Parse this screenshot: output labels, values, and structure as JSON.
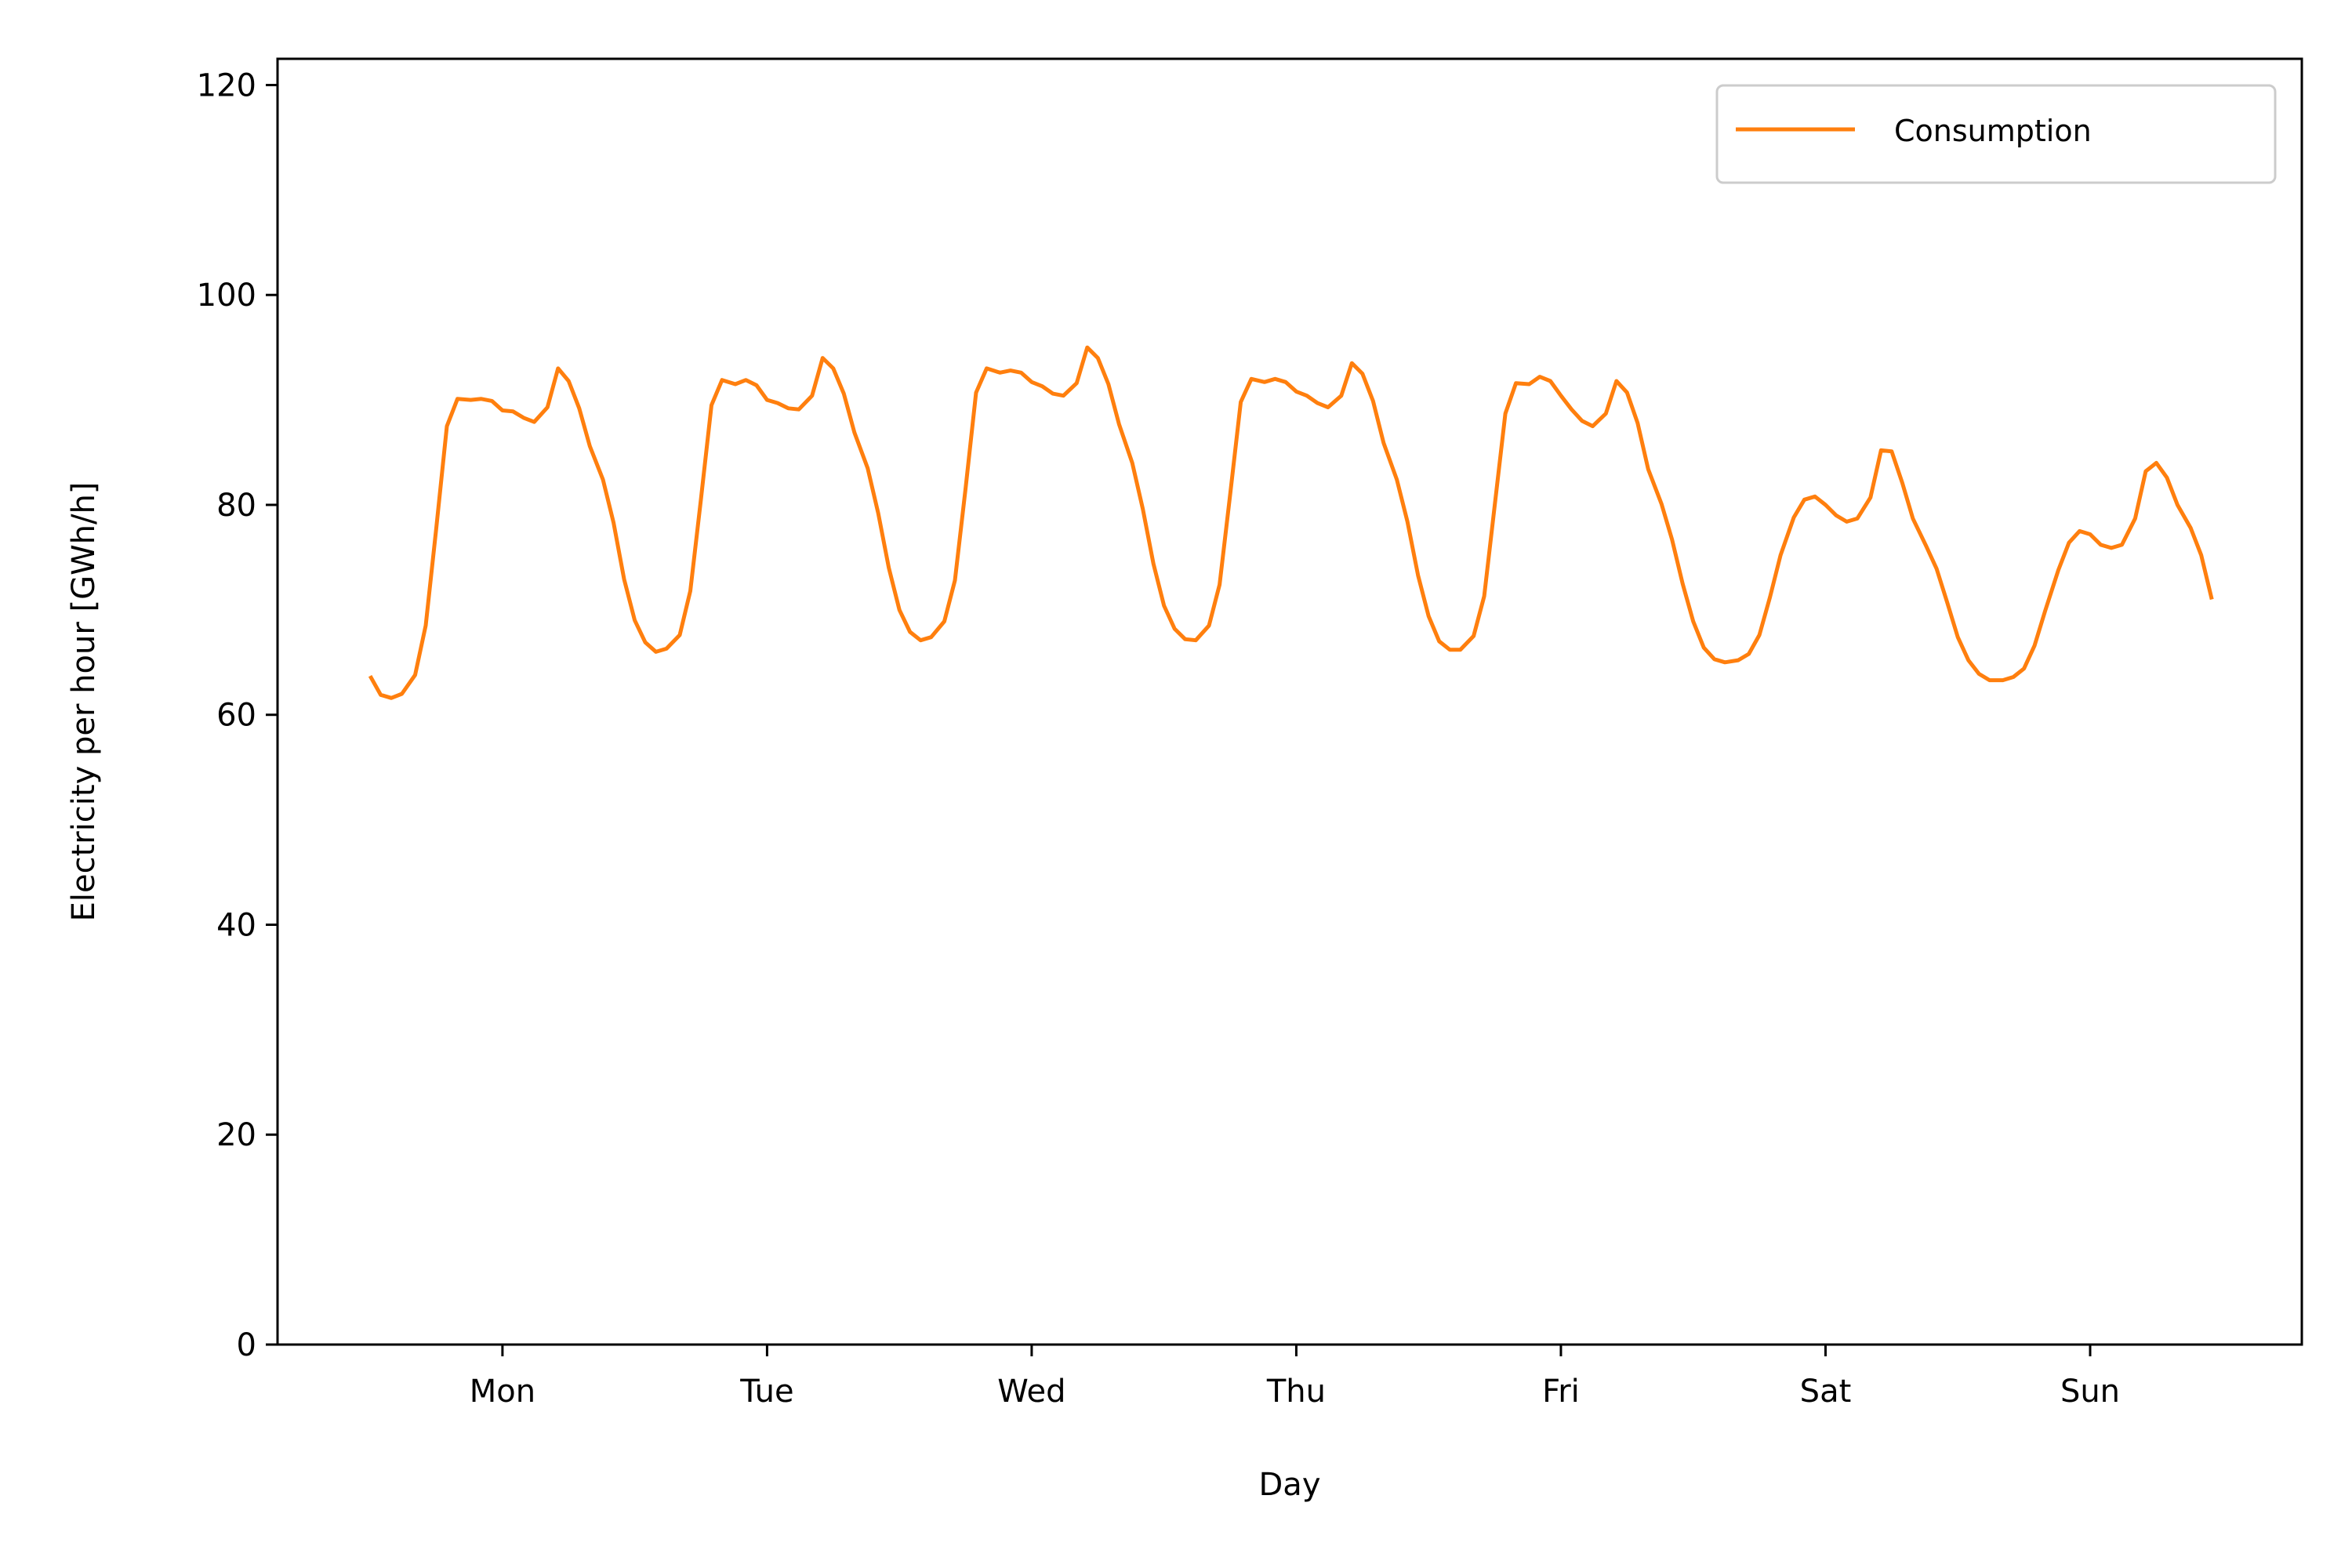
{
  "chart_data": {
    "type": "line",
    "title": "",
    "xlabel": "Day",
    "ylabel": "Electricity per hour [GWh/h]",
    "xlim": [
      -0.85,
      6.8
    ],
    "ylim": [
      0,
      122.5
    ],
    "x_ticks": [
      {
        "value": 0,
        "label": "Mon"
      },
      {
        "value": 1,
        "label": "Tue"
      },
      {
        "value": 2,
        "label": "Wed"
      },
      {
        "value": 3,
        "label": "Thu"
      },
      {
        "value": 4,
        "label": "Fri"
      },
      {
        "value": 5,
        "label": "Sat"
      },
      {
        "value": 6,
        "label": "Sun"
      }
    ],
    "y_ticks": [
      {
        "value": 0,
        "label": "0"
      },
      {
        "value": 20,
        "label": "20"
      },
      {
        "value": 40,
        "label": "40"
      },
      {
        "value": 60,
        "label": "60"
      },
      {
        "value": 80,
        "label": "80"
      },
      {
        "value": 100,
        "label": "100"
      },
      {
        "value": 120,
        "label": "120"
      }
    ],
    "grid": false,
    "legend_position": "top-right",
    "series": [
      {
        "name": "Consumption",
        "color": "#ff7f0e",
        "points": [
          [
            -0.5,
            63.7
          ],
          [
            -0.46,
            61.9
          ],
          [
            -0.42,
            61.6
          ],
          [
            -0.38,
            62.0
          ],
          [
            -0.33,
            63.8
          ],
          [
            -0.29,
            68.5
          ],
          [
            -0.25,
            77.8
          ],
          [
            -0.21,
            87.5
          ],
          [
            -0.17,
            90.1
          ],
          [
            -0.12,
            90.0
          ],
          [
            -0.08,
            90.1
          ],
          [
            -0.04,
            89.9
          ],
          [
            0.0,
            89.0
          ],
          [
            0.04,
            88.9
          ],
          [
            0.08,
            88.3
          ],
          [
            0.12,
            87.9
          ],
          [
            0.17,
            89.3
          ],
          [
            0.21,
            93.0
          ],
          [
            0.25,
            91.8
          ],
          [
            0.29,
            89.2
          ],
          [
            0.33,
            85.6
          ],
          [
            0.38,
            82.4
          ],
          [
            0.42,
            78.3
          ],
          [
            0.46,
            72.9
          ],
          [
            0.5,
            69.0
          ],
          [
            0.54,
            66.9
          ],
          [
            0.58,
            66.0
          ],
          [
            0.62,
            66.3
          ],
          [
            0.67,
            67.6
          ],
          [
            0.71,
            71.8
          ],
          [
            0.75,
            80.5
          ],
          [
            0.79,
            89.5
          ],
          [
            0.83,
            91.9
          ],
          [
            0.88,
            91.5
          ],
          [
            0.92,
            91.9
          ],
          [
            0.96,
            91.4
          ],
          [
            1.0,
            90.0
          ],
          [
            1.04,
            89.7
          ],
          [
            1.08,
            89.2
          ],
          [
            1.12,
            89.1
          ],
          [
            1.17,
            90.4
          ],
          [
            1.21,
            94.0
          ],
          [
            1.25,
            93.0
          ],
          [
            1.29,
            90.6
          ],
          [
            1.33,
            86.9
          ],
          [
            1.38,
            83.5
          ],
          [
            1.42,
            79.2
          ],
          [
            1.46,
            74.0
          ],
          [
            1.5,
            70.0
          ],
          [
            1.54,
            67.9
          ],
          [
            1.58,
            67.1
          ],
          [
            1.62,
            67.4
          ],
          [
            1.67,
            68.9
          ],
          [
            1.71,
            72.8
          ],
          [
            1.75,
            81.5
          ],
          [
            1.79,
            90.7
          ],
          [
            1.83,
            93.0
          ],
          [
            1.88,
            92.6
          ],
          [
            1.92,
            92.8
          ],
          [
            1.96,
            92.6
          ],
          [
            2.0,
            91.7
          ],
          [
            2.04,
            91.3
          ],
          [
            2.08,
            90.6
          ],
          [
            2.12,
            90.4
          ],
          [
            2.17,
            91.6
          ],
          [
            2.21,
            95.0
          ],
          [
            2.25,
            94.0
          ],
          [
            2.29,
            91.5
          ],
          [
            2.33,
            87.7
          ],
          [
            2.38,
            84.0
          ],
          [
            2.42,
            79.6
          ],
          [
            2.46,
            74.4
          ],
          [
            2.5,
            70.4
          ],
          [
            2.54,
            68.2
          ],
          [
            2.58,
            67.2
          ],
          [
            2.62,
            67.1
          ],
          [
            2.67,
            68.5
          ],
          [
            2.71,
            72.4
          ],
          [
            2.75,
            81.0
          ],
          [
            2.79,
            89.8
          ],
          [
            2.83,
            92.0
          ],
          [
            2.88,
            91.7
          ],
          [
            2.92,
            92.0
          ],
          [
            2.96,
            91.7
          ],
          [
            3.0,
            90.8
          ],
          [
            3.04,
            90.4
          ],
          [
            3.08,
            89.7
          ],
          [
            3.12,
            89.3
          ],
          [
            3.17,
            90.4
          ],
          [
            3.21,
            93.5
          ],
          [
            3.25,
            92.5
          ],
          [
            3.29,
            89.9
          ],
          [
            3.33,
            85.9
          ],
          [
            3.38,
            82.4
          ],
          [
            3.42,
            78.4
          ],
          [
            3.46,
            73.3
          ],
          [
            3.5,
            69.4
          ],
          [
            3.54,
            67.0
          ],
          [
            3.58,
            66.2
          ],
          [
            3.62,
            66.2
          ],
          [
            3.67,
            67.5
          ],
          [
            3.71,
            71.3
          ],
          [
            3.75,
            80.0
          ],
          [
            3.79,
            88.7
          ],
          [
            3.83,
            91.6
          ],
          [
            3.88,
            91.5
          ],
          [
            3.92,
            92.2
          ],
          [
            3.96,
            91.8
          ],
          [
            4.0,
            90.4
          ],
          [
            4.04,
            89.1
          ],
          [
            4.08,
            88.0
          ],
          [
            4.12,
            87.5
          ],
          [
            4.17,
            88.7
          ],
          [
            4.21,
            91.8
          ],
          [
            4.25,
            90.7
          ],
          [
            4.29,
            87.8
          ],
          [
            4.33,
            83.4
          ],
          [
            4.38,
            80.1
          ],
          [
            4.42,
            76.7
          ],
          [
            4.46,
            72.5
          ],
          [
            4.5,
            68.9
          ],
          [
            4.54,
            66.4
          ],
          [
            4.58,
            65.3
          ],
          [
            4.62,
            65.0
          ],
          [
            4.67,
            65.2
          ],
          [
            4.71,
            65.8
          ],
          [
            4.75,
            67.6
          ],
          [
            4.79,
            71.2
          ],
          [
            4.83,
            75.2
          ],
          [
            4.88,
            78.8
          ],
          [
            4.92,
            80.5
          ],
          [
            4.96,
            80.8
          ],
          [
            5.0,
            80.0
          ],
          [
            5.04,
            79.0
          ],
          [
            5.08,
            78.4
          ],
          [
            5.12,
            78.7
          ],
          [
            5.17,
            80.7
          ],
          [
            5.21,
            85.2
          ],
          [
            5.25,
            85.1
          ],
          [
            5.29,
            82.1
          ],
          [
            5.33,
            78.7
          ],
          [
            5.38,
            76.1
          ],
          [
            5.42,
            73.9
          ],
          [
            5.46,
            70.7
          ],
          [
            5.5,
            67.4
          ],
          [
            5.54,
            65.2
          ],
          [
            5.58,
            63.9
          ],
          [
            5.62,
            63.3
          ],
          [
            5.67,
            63.3
          ],
          [
            5.71,
            63.6
          ],
          [
            5.75,
            64.4
          ],
          [
            5.79,
            66.6
          ],
          [
            5.83,
            69.9
          ],
          [
            5.88,
            73.8
          ],
          [
            5.92,
            76.4
          ],
          [
            5.96,
            77.5
          ],
          [
            6.0,
            77.2
          ],
          [
            6.04,
            76.2
          ],
          [
            6.08,
            75.9
          ],
          [
            6.12,
            76.2
          ],
          [
            6.17,
            78.7
          ],
          [
            6.21,
            83.2
          ],
          [
            6.25,
            84.0
          ],
          [
            6.29,
            82.6
          ],
          [
            6.33,
            80.0
          ],
          [
            6.38,
            77.8
          ],
          [
            6.42,
            75.2
          ],
          [
            6.46,
            71.0
          ]
        ]
      }
    ]
  }
}
